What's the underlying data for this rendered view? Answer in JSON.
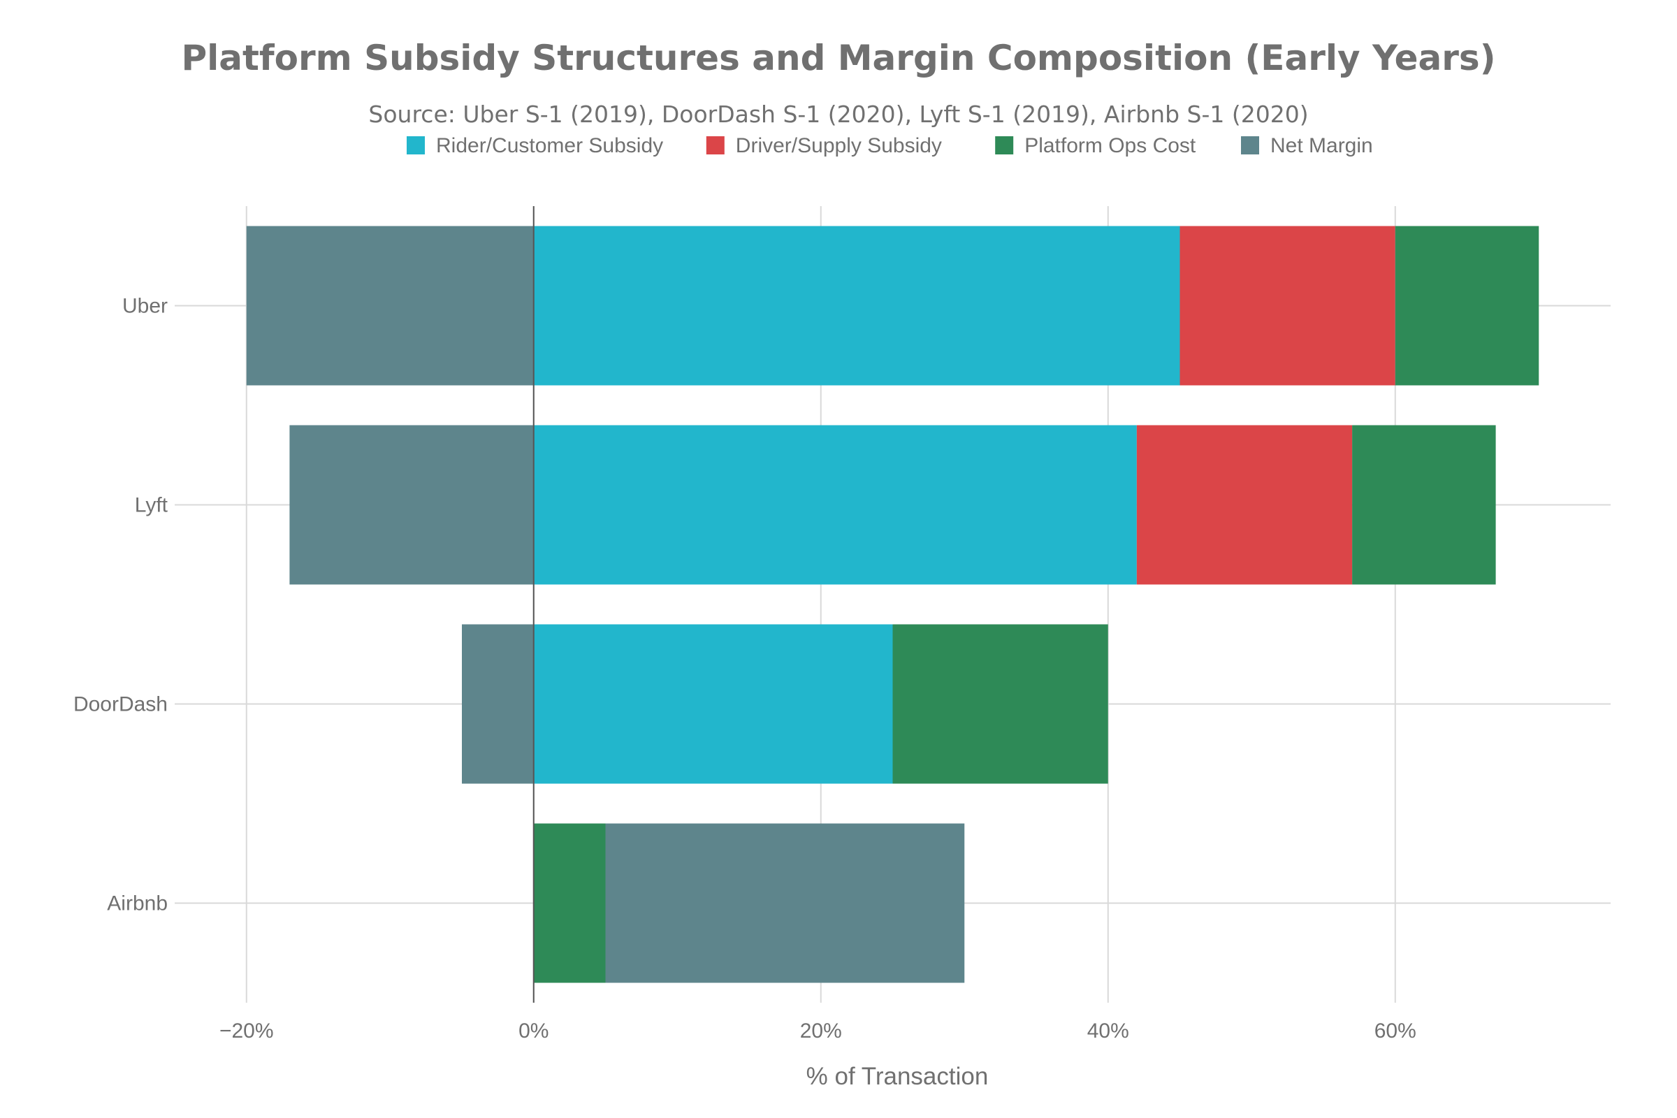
{
  "chart_data": {
    "type": "bar",
    "orientation": "horizontal",
    "stacked": true,
    "title": "Platform Subsidy Structures and Margin Composition (Early Years)",
    "subtitle": "Source: Uber S-1 (2019), DoorDash S-1 (2020), Lyft S-1 (2019), Airbnb S-1 (2020)",
    "xlabel": "% of Transaction",
    "ylabel": "",
    "categories": [
      "Uber",
      "Lyft",
      "DoorDash",
      "Airbnb"
    ],
    "series": [
      {
        "name": "Rider/Customer Subsidy",
        "color": "#22b6cc",
        "values": [
          45,
          42,
          25,
          0
        ]
      },
      {
        "name": "Driver/Supply Subsidy",
        "color": "#db4548",
        "values": [
          15,
          15,
          0,
          0
        ]
      },
      {
        "name": "Platform Ops Cost",
        "color": "#2e8a57",
        "values": [
          10,
          10,
          15,
          5
        ]
      },
      {
        "name": "Net Margin",
        "color": "#5e858c",
        "values": [
          -20,
          -17,
          -5,
          25
        ]
      }
    ],
    "xlim": [
      -25,
      75
    ],
    "xticks": [
      -20,
      0,
      20,
      40,
      60
    ],
    "xtick_labels": [
      "−20%",
      "0%",
      "20%",
      "40%",
      "60%"
    ],
    "grid": true,
    "legend_position": "top-center"
  }
}
